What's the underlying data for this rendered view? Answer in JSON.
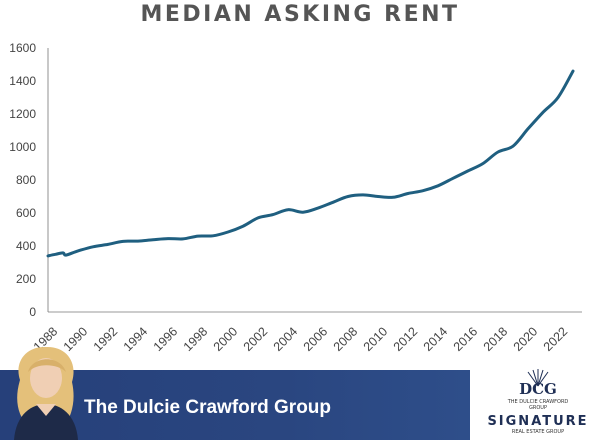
{
  "chart_data": {
    "type": "line",
    "title": "MEDIAN ASKING RENT",
    "xlabel": "",
    "ylabel": "",
    "ylim": [
      0,
      1600
    ],
    "xlim": [
      1988,
      2023
    ],
    "yticks": [
      0,
      200,
      400,
      600,
      800,
      1000,
      1200,
      1400,
      1600
    ],
    "xticks": [
      "1988",
      "1990",
      "1992",
      "1994",
      "1996",
      "1998",
      "2000",
      "2002",
      "2004",
      "2006",
      "2008",
      "2010",
      "2012",
      "2014",
      "2016",
      "2018",
      "2020",
      "2022"
    ],
    "grid": false,
    "line_color": "#1f5f80",
    "series": [
      {
        "x": [
          1988,
          1988.5,
          1989,
          1989.2,
          1990,
          1991,
          1992,
          1993,
          1994,
          1995,
          1996,
          1997,
          1998,
          1999,
          2000,
          2001,
          2002,
          2003,
          2004,
          2005,
          2006,
          2007,
          2008,
          2009,
          2010,
          2011,
          2012,
          2013,
          2014,
          2015,
          2016,
          2017,
          2018,
          2019,
          2020,
          2021,
          2022,
          2023
        ],
        "values": [
          340,
          350,
          358,
          345,
          370,
          395,
          410,
          428,
          430,
          438,
          445,
          443,
          460,
          462,
          485,
          520,
          570,
          590,
          620,
          605,
          630,
          665,
          700,
          710,
          700,
          695,
          718,
          735,
          765,
          810,
          855,
          900,
          970,
          1005,
          1110,
          1210,
          1300,
          1460
        ]
      }
    ]
  },
  "banner": {
    "text": "The Dulcie Crawford Group",
    "color": "#26407a"
  },
  "logo": {
    "monogram": "DCG",
    "line1": "THE DULCIE CRAWFORD",
    "line2": "GROUP",
    "brand": "SIGNATURE",
    "tagline": "REAL ESTATE GROUP"
  }
}
